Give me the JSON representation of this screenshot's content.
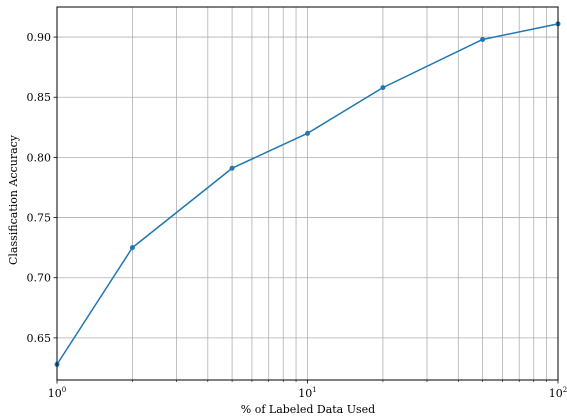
{
  "chart_data": {
    "type": "line",
    "title": "",
    "xlabel": "% of Labeled Data Used",
    "ylabel": "Classification Accuracy",
    "xscale": "log",
    "xlim": [
      1,
      100
    ],
    "ylim": [
      0.615,
      0.925
    ],
    "grid": true,
    "x_major_ticks": [
      {
        "value": 1,
        "base": "10",
        "exp": "0"
      },
      {
        "value": 10,
        "base": "10",
        "exp": "1"
      },
      {
        "value": 100,
        "base": "10",
        "exp": "2"
      }
    ],
    "x_minor_ticks": [
      2,
      3,
      4,
      5,
      6,
      7,
      8,
      9,
      20,
      30,
      40,
      50,
      60,
      70,
      80,
      90
    ],
    "y_ticks": [
      "0.65",
      "0.70",
      "0.75",
      "0.80",
      "0.85",
      "0.90"
    ],
    "x": [
      1,
      2,
      5,
      10,
      20,
      50,
      100
    ],
    "series": [
      {
        "values": [
          0.628,
          0.725,
          0.791,
          0.82,
          0.858,
          0.898,
          0.911
        ],
        "color": "#1f77b4"
      }
    ]
  }
}
